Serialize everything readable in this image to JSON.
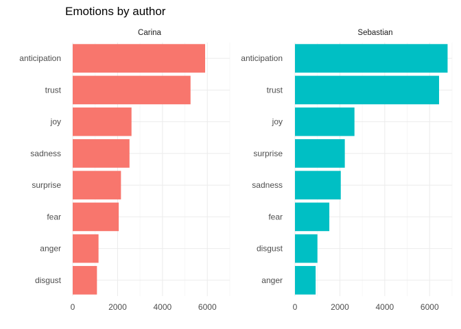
{
  "chart_data": {
    "type": "bar",
    "orientation": "horizontal",
    "title": "Emotions by author",
    "xlabel": "",
    "ylabel": "",
    "xlim": [
      0,
      7000
    ],
    "x_ticks": [
      0,
      2000,
      4000,
      6000
    ],
    "grid": true,
    "legend": "none",
    "panels": [
      {
        "name": "Carina",
        "color": "#F8766D",
        "categories": [
          "anticipation",
          "trust",
          "joy",
          "sadness",
          "surprise",
          "fear",
          "anger",
          "disgust"
        ],
        "values": [
          5900,
          5250,
          2620,
          2530,
          2150,
          2050,
          1150,
          1080
        ]
      },
      {
        "name": "Sebastian",
        "color": "#00BFC4",
        "categories": [
          "anticipation",
          "trust",
          "joy",
          "surprise",
          "sadness",
          "fear",
          "disgust",
          "anger"
        ],
        "values": [
          6800,
          6420,
          2650,
          2220,
          2040,
          1530,
          1000,
          920
        ]
      }
    ]
  }
}
